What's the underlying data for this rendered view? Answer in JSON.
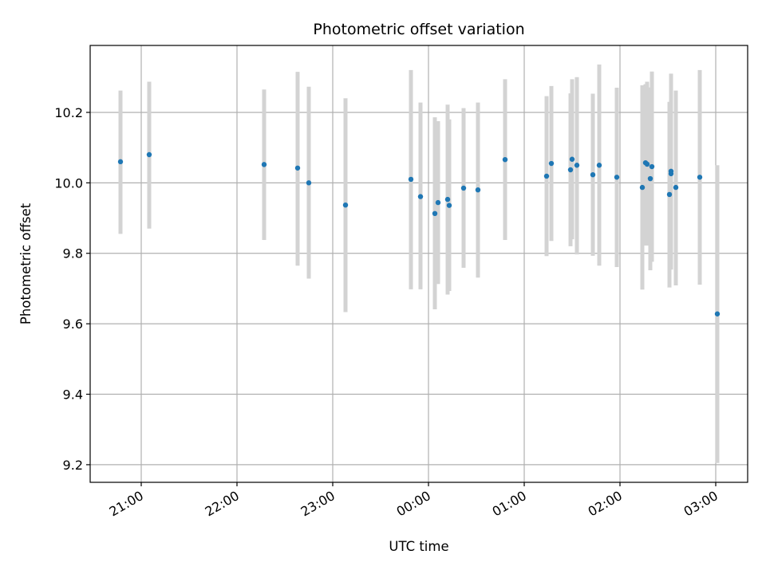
{
  "chart_data": {
    "type": "scatter",
    "title": "Photometric offset variation",
    "xlabel": "UTC time",
    "ylabel": "Photometric offset",
    "xlim": [
      "20:28",
      "03:20"
    ],
    "ylim": [
      9.15,
      10.39
    ],
    "x_ticks": [
      "21:00",
      "22:00",
      "23:00",
      "00:00",
      "01:00",
      "02:00",
      "03:00"
    ],
    "y_ticks": [
      "9.2",
      "9.4",
      "9.6",
      "9.8",
      "10.0",
      "10.2"
    ],
    "grid": true,
    "marker_color": "#1f77b4",
    "errorbar_color": "#d3d3d3",
    "points": [
      {
        "t": "20:47",
        "y": 10.06,
        "lo": 9.855,
        "hi": 10.262
      },
      {
        "t": "21:05",
        "y": 10.08,
        "lo": 9.87,
        "hi": 10.287
      },
      {
        "t": "22:17",
        "y": 10.052,
        "lo": 9.838,
        "hi": 10.265
      },
      {
        "t": "22:38",
        "y": 10.042,
        "lo": 9.765,
        "hi": 10.315
      },
      {
        "t": "22:45",
        "y": 10.0,
        "lo": 9.728,
        "hi": 10.273
      },
      {
        "t": "23:08",
        "y": 9.937,
        "lo": 9.633,
        "hi": 10.24
      },
      {
        "t": "23:49",
        "y": 10.01,
        "lo": 9.698,
        "hi": 10.32
      },
      {
        "t": "23:55",
        "y": 9.961,
        "lo": 9.698,
        "hi": 10.228
      },
      {
        "t": "00:04",
        "y": 9.913,
        "lo": 9.641,
        "hi": 10.186
      },
      {
        "t": "00:06",
        "y": 9.944,
        "lo": 9.713,
        "hi": 10.175
      },
      {
        "t": "00:12",
        "y": 9.953,
        "lo": 9.683,
        "hi": 10.222
      },
      {
        "t": "00:13",
        "y": 9.936,
        "lo": 9.693,
        "hi": 10.18
      },
      {
        "t": "00:22",
        "y": 9.985,
        "lo": 9.759,
        "hi": 10.212
      },
      {
        "t": "00:31",
        "y": 9.98,
        "lo": 9.731,
        "hi": 10.228
      },
      {
        "t": "00:48",
        "y": 10.066,
        "lo": 9.838,
        "hi": 10.294
      },
      {
        "t": "01:14",
        "y": 10.019,
        "lo": 9.792,
        "hi": 10.246
      },
      {
        "t": "01:17",
        "y": 10.055,
        "lo": 9.835,
        "hi": 10.275
      },
      {
        "t": "01:29",
        "y": 10.037,
        "lo": 9.82,
        "hi": 10.254
      },
      {
        "t": "01:30",
        "y": 10.067,
        "lo": 9.84,
        "hi": 10.294
      },
      {
        "t": "01:33",
        "y": 10.05,
        "lo": 9.797,
        "hi": 10.3
      },
      {
        "t": "01:43",
        "y": 10.023,
        "lo": 9.793,
        "hi": 10.253
      },
      {
        "t": "01:47",
        "y": 10.05,
        "lo": 9.765,
        "hi": 10.336
      },
      {
        "t": "01:58",
        "y": 10.016,
        "lo": 9.761,
        "hi": 10.27
      },
      {
        "t": "02:14",
        "y": 9.987,
        "lo": 9.697,
        "hi": 10.277
      },
      {
        "t": "02:16",
        "y": 10.057,
        "lo": 9.822,
        "hi": 10.28
      },
      {
        "t": "02:17",
        "y": 10.053,
        "lo": 9.822,
        "hi": 10.287
      },
      {
        "t": "02:19",
        "y": 10.012,
        "lo": 9.752,
        "hi": 10.271
      },
      {
        "t": "02:20",
        "y": 10.046,
        "lo": 9.776,
        "hi": 10.316
      },
      {
        "t": "02:31",
        "y": 9.967,
        "lo": 9.703,
        "hi": 10.23
      },
      {
        "t": "02:32",
        "y": 10.033,
        "lo": 9.754,
        "hi": 10.31
      },
      {
        "t": "02:32",
        "y": 10.026,
        "lo": 9.79,
        "hi": 10.262
      },
      {
        "t": "02:35",
        "y": 9.987,
        "lo": 9.709,
        "hi": 10.262
      },
      {
        "t": "02:50",
        "y": 10.016,
        "lo": 9.711,
        "hi": 10.32
      },
      {
        "t": "03:01",
        "y": 9.628,
        "lo": 9.205,
        "hi": 10.05
      }
    ]
  }
}
